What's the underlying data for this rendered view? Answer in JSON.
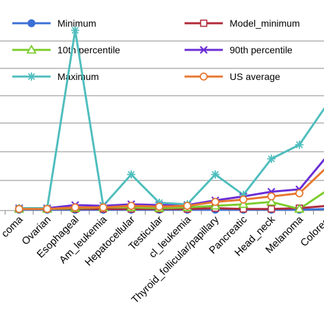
{
  "chart_data": {
    "type": "line",
    "title": "",
    "xlabel": "",
    "ylabel": "",
    "grid": true,
    "legend_placement": "top",
    "categories": [
      "coma",
      "Ovarian",
      "Esophageal",
      "Am_leukemia",
      "Hepatocellular",
      "Testicular",
      "cl_leukemia",
      "Thyroid_follicular/papillary",
      "Pancreatic",
      "Head_neck",
      "Melanoma",
      "Colorect"
    ],
    "ylim": [
      0,
      13
    ],
    "series": [
      {
        "name": "Minimum",
        "color": "#3b6fd6",
        "marker": "circle-filled",
        "values": [
          0.05,
          0.05,
          0.05,
          0.05,
          0.05,
          0.05,
          0.05,
          0.05,
          0.05,
          0.05,
          0.05,
          0.1
        ]
      },
      {
        "name": "Model_minimum",
        "color": "#b02a3a",
        "marker": "square-open",
        "values": [
          0.1,
          0.1,
          0.1,
          0.1,
          0.1,
          0.1,
          0.1,
          0.15,
          0.1,
          0.1,
          0.15,
          0.3
        ]
      },
      {
        "name": "10th percentile",
        "color": "#7ccc2c",
        "marker": "triangle-open",
        "values": [
          0.1,
          0.1,
          0.15,
          0.2,
          0.2,
          0.15,
          0.2,
          0.3,
          0.4,
          0.55,
          0.1,
          1.3
        ]
      },
      {
        "name": "90th percentile",
        "color": "#6a2dd6",
        "marker": "x",
        "values": [
          0.15,
          0.15,
          0.35,
          0.3,
          0.4,
          0.35,
          0.35,
          0.65,
          0.9,
          1.2,
          1.35,
          3.5
        ]
      },
      {
        "name": "Maximum",
        "color": "#4fbdbd",
        "marker": "asterisk",
        "values": [
          0.15,
          0.15,
          11.5,
          0.3,
          2.3,
          0.5,
          0.4,
          2.3,
          1.0,
          3.3,
          4.2,
          6.8
        ]
      },
      {
        "name": "US average",
        "color": "#e8772e",
        "marker": "circle-open",
        "values": [
          0.1,
          0.1,
          0.2,
          0.2,
          0.3,
          0.25,
          0.3,
          0.55,
          0.7,
          0.9,
          1.1,
          2.8
        ]
      }
    ]
  }
}
